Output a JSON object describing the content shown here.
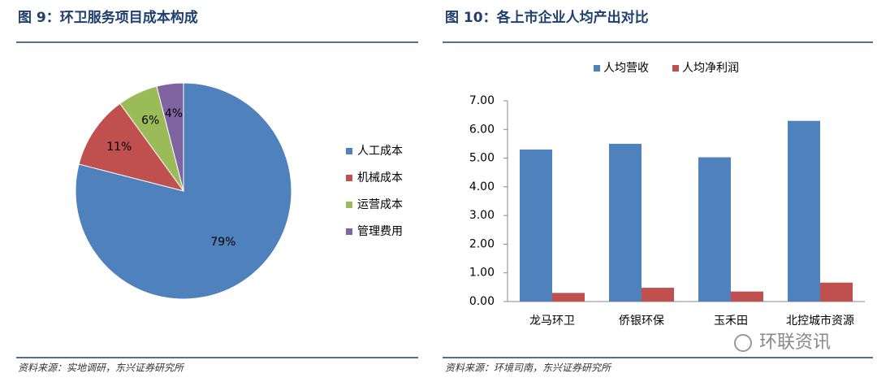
{
  "chart_data": [
    {
      "type": "pie",
      "title": "图 9：环卫服务项目成本构成",
      "source": "资料来源：实地调研，东兴证券研究所",
      "categories": [
        "人工成本",
        "机械成本",
        "运营成本",
        "管理费用"
      ],
      "values": [
        79,
        11,
        6,
        4
      ],
      "value_labels": [
        "79%",
        "11%",
        "6%",
        "4%"
      ],
      "colors": [
        "#4f81bd",
        "#c0504d",
        "#9bbb59",
        "#8064a2"
      ]
    },
    {
      "type": "bar",
      "title": "图 10：各上市企业人均产出对比",
      "source": "资料来源：环境司南，东兴证券研究所",
      "categories": [
        "龙马环卫",
        "侨银环保",
        "玉禾田",
        "北控城市资源"
      ],
      "series": [
        {
          "name": "人均营收",
          "color": "#4f81bd",
          "values": [
            5.3,
            5.5,
            5.03,
            6.3
          ]
        },
        {
          "name": "人均净利润",
          "color": "#c0504d",
          "values": [
            0.3,
            0.48,
            0.35,
            0.66
          ]
        }
      ],
      "ylim": [
        0,
        7
      ],
      "yticks": [
        {
          "value": 0,
          "label": "0.00"
        },
        {
          "value": 1,
          "label": "1.00"
        },
        {
          "value": 2,
          "label": "2.00"
        },
        {
          "value": 3,
          "label": "3.00"
        },
        {
          "value": 4,
          "label": "4.00"
        },
        {
          "value": 5,
          "label": "5.00"
        },
        {
          "value": 6,
          "label": "6.00"
        },
        {
          "value": 7,
          "label": "7.00"
        }
      ],
      "grid": false
    }
  ],
  "watermark": "环联资讯"
}
